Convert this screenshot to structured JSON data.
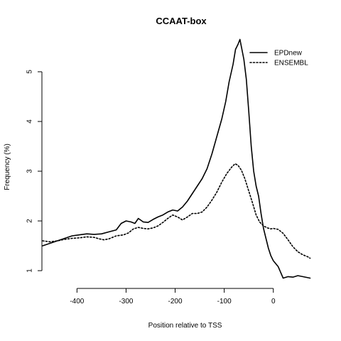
{
  "chart_data": {
    "type": "line",
    "title": "CCAAT-box",
    "xlabel": "Position relative to TSS",
    "ylabel": "Frequency (%)",
    "xlim": [
      -470,
      80
    ],
    "ylim": [
      0.8,
      5.8
    ],
    "x_ticks": [
      -400,
      -300,
      -200,
      -100,
      0
    ],
    "y_ticks": [
      1,
      2,
      3,
      4,
      5
    ],
    "x_tick_labels": [
      "-400",
      "-300",
      "-200",
      "-100",
      "0"
    ],
    "y_tick_labels": [
      "1",
      "2",
      "3",
      "4",
      "5"
    ],
    "legend_position": "top-right",
    "grid": false,
    "series": [
      {
        "name": "EPDnew",
        "style": "solid",
        "color": "#000000",
        "points": [
          [
            -470,
            1.5
          ],
          [
            -455,
            1.55
          ],
          [
            -440,
            1.6
          ],
          [
            -425,
            1.65
          ],
          [
            -410,
            1.7
          ],
          [
            -395,
            1.72
          ],
          [
            -380,
            1.74
          ],
          [
            -365,
            1.73
          ],
          [
            -350,
            1.74
          ],
          [
            -335,
            1.78
          ],
          [
            -320,
            1.82
          ],
          [
            -310,
            1.95
          ],
          [
            -300,
            2.0
          ],
          [
            -290,
            1.98
          ],
          [
            -282,
            1.95
          ],
          [
            -275,
            2.05
          ],
          [
            -265,
            1.98
          ],
          [
            -255,
            1.97
          ],
          [
            -245,
            2.03
          ],
          [
            -235,
            2.08
          ],
          [
            -225,
            2.12
          ],
          [
            -215,
            2.18
          ],
          [
            -205,
            2.22
          ],
          [
            -195,
            2.2
          ],
          [
            -185,
            2.28
          ],
          [
            -175,
            2.4
          ],
          [
            -165,
            2.55
          ],
          [
            -155,
            2.7
          ],
          [
            -145,
            2.85
          ],
          [
            -135,
            3.05
          ],
          [
            -125,
            3.35
          ],
          [
            -115,
            3.7
          ],
          [
            -105,
            4.05
          ],
          [
            -97,
            4.4
          ],
          [
            -90,
            4.8
          ],
          [
            -82,
            5.15
          ],
          [
            -77,
            5.45
          ],
          [
            -72,
            5.55
          ],
          [
            -68,
            5.65
          ],
          [
            -65,
            5.5
          ],
          [
            -60,
            5.25
          ],
          [
            -55,
            4.85
          ],
          [
            -50,
            4.2
          ],
          [
            -45,
            3.5
          ],
          [
            -40,
            3.0
          ],
          [
            -35,
            2.7
          ],
          [
            -30,
            2.5
          ],
          [
            -25,
            2.15
          ],
          [
            -20,
            1.85
          ],
          [
            -15,
            1.65
          ],
          [
            -10,
            1.45
          ],
          [
            -5,
            1.3
          ],
          [
            0,
            1.2
          ],
          [
            10,
            1.08
          ],
          [
            20,
            0.85
          ],
          [
            30,
            0.88
          ],
          [
            40,
            0.87
          ],
          [
            50,
            0.9
          ],
          [
            60,
            0.88
          ],
          [
            75,
            0.85
          ]
        ]
      },
      {
        "name": "ENSEMBL",
        "style": "dotted",
        "color": "#000000",
        "points": [
          [
            -470,
            1.6
          ],
          [
            -455,
            1.58
          ],
          [
            -440,
            1.6
          ],
          [
            -425,
            1.63
          ],
          [
            -410,
            1.65
          ],
          [
            -395,
            1.66
          ],
          [
            -380,
            1.68
          ],
          [
            -365,
            1.67
          ],
          [
            -355,
            1.64
          ],
          [
            -345,
            1.62
          ],
          [
            -335,
            1.64
          ],
          [
            -320,
            1.7
          ],
          [
            -305,
            1.72
          ],
          [
            -295,
            1.76
          ],
          [
            -285,
            1.84
          ],
          [
            -275,
            1.87
          ],
          [
            -265,
            1.85
          ],
          [
            -255,
            1.84
          ],
          [
            -245,
            1.86
          ],
          [
            -235,
            1.9
          ],
          [
            -225,
            1.97
          ],
          [
            -215,
            2.05
          ],
          [
            -205,
            2.12
          ],
          [
            -195,
            2.08
          ],
          [
            -185,
            2.02
          ],
          [
            -175,
            2.08
          ],
          [
            -165,
            2.15
          ],
          [
            -155,
            2.15
          ],
          [
            -145,
            2.18
          ],
          [
            -135,
            2.28
          ],
          [
            -125,
            2.42
          ],
          [
            -115,
            2.58
          ],
          [
            -105,
            2.78
          ],
          [
            -95,
            2.95
          ],
          [
            -85,
            3.08
          ],
          [
            -78,
            3.15
          ],
          [
            -72,
            3.12
          ],
          [
            -65,
            3.02
          ],
          [
            -58,
            2.85
          ],
          [
            -50,
            2.6
          ],
          [
            -42,
            2.35
          ],
          [
            -35,
            2.12
          ],
          [
            -28,
            1.98
          ],
          [
            -20,
            1.9
          ],
          [
            -12,
            1.86
          ],
          [
            -5,
            1.84
          ],
          [
            0,
            1.85
          ],
          [
            10,
            1.83
          ],
          [
            20,
            1.75
          ],
          [
            30,
            1.62
          ],
          [
            40,
            1.48
          ],
          [
            50,
            1.38
          ],
          [
            60,
            1.32
          ],
          [
            70,
            1.28
          ],
          [
            75,
            1.25
          ]
        ]
      }
    ]
  }
}
